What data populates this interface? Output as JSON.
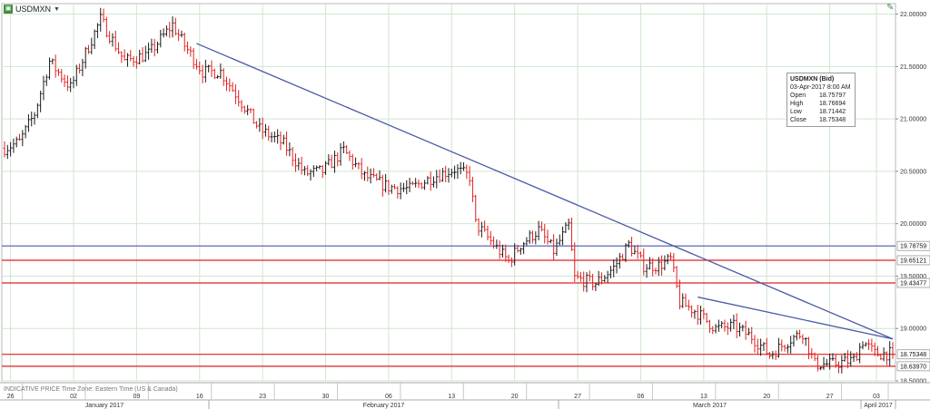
{
  "header": {
    "symbol": "USDMXN",
    "symbol_icon": "chart-symbol-icon",
    "edit_icon": "pencil-icon"
  },
  "tooltip": {
    "title": "USDMXN (Bid)",
    "date": "03-Apr-2017 8:00 AM",
    "rows": [
      {
        "label": "Open",
        "value": "18.75797"
      },
      {
        "label": "High",
        "value": "18.76694"
      },
      {
        "label": "Low",
        "value": "18.71442"
      },
      {
        "label": "Close",
        "value": "18.75348"
      }
    ]
  },
  "footnote": "INDICATIVE PRICE  Time Zone: Eastern Time (US & Canada)",
  "colors": {
    "up": "#1a1a1a",
    "down": "#e02020",
    "resistance": "#e02020",
    "trend": "#4a5aa8",
    "grid": "#cfe6cf"
  },
  "chart_data": {
    "type": "candlestick",
    "instrument": "USDMXN",
    "ylim": [
      18.5,
      22.1
    ],
    "yticks": [
      "22.00000",
      "21.50000",
      "21.00000",
      "20.50000",
      "20.00000",
      "19.50000",
      "19.00000",
      "18.50000"
    ],
    "ytick_values": [
      22.0,
      21.5,
      21.0,
      20.5,
      20.0,
      19.5,
      19.0,
      18.5
    ],
    "x_tick_labels": [
      "26",
      "02",
      "09",
      "16",
      "23",
      "30",
      "06",
      "13",
      "20",
      "27",
      "06",
      "13",
      "20",
      "27",
      "03"
    ],
    "months": [
      "January 2017",
      "February 2017",
      "March 2017",
      "April 2017"
    ],
    "levels": [
      {
        "value": 19.78759,
        "label": "19.78759",
        "color": "#4a5aa8"
      },
      {
        "value": 19.65121,
        "label": "19.65121",
        "color": "#e02020"
      },
      {
        "value": 19.43477,
        "label": "19.43477",
        "color": "#e02020"
      },
      {
        "value": 18.75348,
        "label": "18.75348",
        "color": "#e02020"
      },
      {
        "value": 18.6397,
        "label": "18.63970",
        "color": "#e02020"
      }
    ],
    "anchors": [
      [
        0,
        20.72
      ],
      [
        5,
        20.78
      ],
      [
        10,
        21.05
      ],
      [
        15,
        21.55
      ],
      [
        22,
        21.3
      ],
      [
        32,
        21.95
      ],
      [
        40,
        21.55
      ],
      [
        48,
        21.62
      ],
      [
        56,
        21.9
      ],
      [
        60,
        21.7
      ],
      [
        66,
        21.45
      ],
      [
        72,
        21.45
      ],
      [
        78,
        21.2
      ],
      [
        85,
        20.9
      ],
      [
        93,
        20.76
      ],
      [
        100,
        20.48
      ],
      [
        106,
        20.5
      ],
      [
        113,
        20.7
      ],
      [
        120,
        20.45
      ],
      [
        128,
        20.35
      ],
      [
        135,
        20.33
      ],
      [
        143,
        20.45
      ],
      [
        150,
        20.52
      ],
      [
        155,
        20.45
      ],
      [
        157,
        20.0
      ],
      [
        163,
        19.8
      ],
      [
        168,
        19.64
      ],
      [
        172,
        19.8
      ],
      [
        178,
        19.94
      ],
      [
        183,
        19.74
      ],
      [
        188,
        19.98
      ],
      [
        190,
        19.48
      ],
      [
        197,
        19.43
      ],
      [
        203,
        19.58
      ],
      [
        208,
        19.8
      ],
      [
        213,
        19.6
      ],
      [
        218,
        19.6
      ],
      [
        222,
        19.66
      ],
      [
        225,
        19.25
      ],
      [
        230,
        19.17
      ],
      [
        237,
        19.0
      ],
      [
        243,
        19.02
      ],
      [
        249,
        18.92
      ],
      [
        255,
        18.75
      ],
      [
        262,
        18.9
      ],
      [
        266,
        18.96
      ],
      [
        270,
        18.66
      ],
      [
        276,
        18.66
      ],
      [
        283,
        18.7
      ],
      [
        286,
        18.88
      ],
      [
        290,
        18.76
      ]
    ],
    "trendlines": [
      {
        "x0": 64,
        "y0": 21.72,
        "x1": 296,
        "y1": 18.9
      },
      {
        "x0": 231,
        "y0": 19.3,
        "x1": 296,
        "y1": 18.9
      }
    ],
    "last_close": 18.75348
  }
}
